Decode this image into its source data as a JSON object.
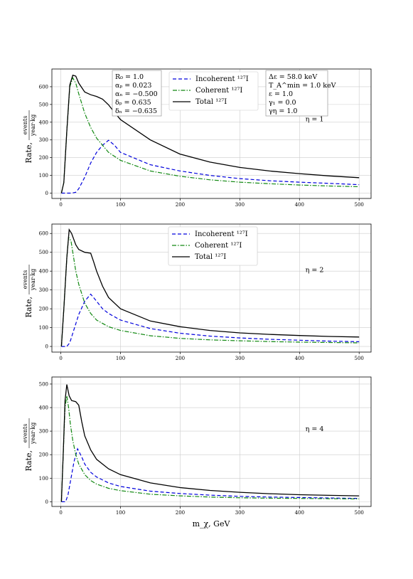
{
  "figure": {
    "xlabel": "m_χ, GeV",
    "ylabel_prefix": "Rate,",
    "ylabel_numerator": "events",
    "ylabel_denominator": "year·kg"
  },
  "legend": {
    "incoherent": "Incoherent ¹²⁷I",
    "coherent": "Coherent ¹²⁷I",
    "total": "Total ¹²⁷I"
  },
  "params_left": [
    "R₀ = 1.0",
    "αₚ = 0.023",
    "αₙ = −0.500",
    "δₚ = 0.635",
    "δₙ = −0.635"
  ],
  "params_right": [
    "Δε = 58.0 keV",
    "T_A^min = 1.0 keV",
    "ε = 1.0",
    "γ₁ = 0.0",
    "γη = 1.0"
  ],
  "colors": {
    "incoherent": "#0000dd",
    "coherent": "#118811",
    "total": "#000000",
    "grid": "#cccccc"
  },
  "chart_data": [
    {
      "type": "line",
      "label": "η = 1",
      "xlim": [
        -15,
        520
      ],
      "ylim": [
        -30,
        700
      ],
      "xticks": [
        0,
        100,
        200,
        300,
        400,
        500
      ],
      "yticks": [
        0,
        100,
        200,
        300,
        400,
        500,
        600
      ],
      "grid": true,
      "series": [
        {
          "name": "Incoherent ¹²⁷I",
          "key": "incoherent",
          "x": [
            1,
            18,
            25,
            30,
            40,
            50,
            60,
            70,
            80,
            90,
            100,
            150,
            200,
            250,
            300,
            350,
            400,
            450,
            500
          ],
          "y": [
            0,
            0,
            5,
            25,
            90,
            170,
            230,
            270,
            298,
            270,
            230,
            160,
            125,
            100,
            82,
            70,
            62,
            55,
            48
          ]
        },
        {
          "name": "Coherent ¹²⁷I",
          "key": "coherent",
          "x": [
            1,
            5,
            10,
            15,
            20,
            25,
            30,
            40,
            50,
            60,
            80,
            100,
            150,
            200,
            250,
            300,
            350,
            400,
            450,
            500
          ],
          "y": [
            0,
            60,
            350,
            600,
            650,
            620,
            560,
            450,
            370,
            310,
            230,
            185,
            125,
            95,
            75,
            62,
            53,
            46,
            40,
            36
          ]
        },
        {
          "name": "Total ¹²⁷I",
          "key": "total",
          "x": [
            1,
            5,
            10,
            15,
            20,
            25,
            30,
            40,
            50,
            60,
            70,
            80,
            90,
            100,
            150,
            200,
            250,
            300,
            350,
            400,
            450,
            500
          ],
          "y": [
            0,
            60,
            350,
            610,
            665,
            660,
            620,
            570,
            555,
            545,
            530,
            498,
            455,
            415,
            300,
            220,
            175,
            145,
            125,
            110,
            97,
            87
          ]
        }
      ]
    },
    {
      "type": "line",
      "label": "η = 2",
      "xlim": [
        -15,
        520
      ],
      "ylim": [
        -30,
        650
      ],
      "xticks": [
        0,
        100,
        200,
        300,
        400,
        500
      ],
      "yticks": [
        0,
        100,
        200,
        300,
        400,
        500,
        600
      ],
      "grid": true,
      "series": [
        {
          "name": "Incoherent ¹²⁷I",
          "key": "incoherent",
          "x": [
            1,
            10,
            15,
            20,
            25,
            30,
            40,
            50,
            60,
            70,
            80,
            100,
            150,
            200,
            250,
            300,
            350,
            400,
            450,
            500
          ],
          "y": [
            0,
            0,
            20,
            70,
            120,
            170,
            240,
            278,
            240,
            200,
            175,
            140,
            95,
            70,
            55,
            45,
            38,
            33,
            28,
            25
          ]
        },
        {
          "name": "Coherent ¹²⁷I",
          "key": "coherent",
          "x": [
            1,
            5,
            10,
            13,
            17,
            20,
            25,
            30,
            40,
            50,
            60,
            80,
            100,
            150,
            200,
            250,
            300,
            350,
            400,
            450,
            500
          ],
          "y": [
            0,
            200,
            470,
            580,
            560,
            500,
            400,
            330,
            230,
            175,
            140,
            105,
            85,
            57,
            43,
            35,
            30,
            26,
            23,
            21,
            19
          ]
        },
        {
          "name": "Total ¹²⁷I",
          "key": "total",
          "x": [
            1,
            5,
            10,
            14,
            18,
            25,
            30,
            40,
            50,
            55,
            60,
            70,
            80,
            100,
            150,
            200,
            250,
            300,
            350,
            400,
            450,
            500
          ],
          "y": [
            0,
            200,
            470,
            620,
            600,
            540,
            515,
            500,
            495,
            450,
            400,
            320,
            260,
            200,
            135,
            105,
            85,
            72,
            64,
            58,
            53,
            50
          ]
        }
      ]
    },
    {
      "type": "line",
      "label": "η = 4",
      "xlim": [
        -15,
        520
      ],
      "ylim": [
        -20,
        530
      ],
      "xticks": [
        0,
        100,
        200,
        300,
        400,
        500
      ],
      "yticks": [
        0,
        100,
        200,
        300,
        400,
        500
      ],
      "grid": true,
      "series": [
        {
          "name": "Incoherent ¹²⁷I",
          "key": "incoherent",
          "x": [
            1,
            8,
            12,
            17,
            22,
            28,
            35,
            40,
            50,
            60,
            80,
            100,
            150,
            200,
            250,
            300,
            350,
            400,
            450,
            500
          ],
          "y": [
            0,
            0,
            30,
            100,
            170,
            225,
            190,
            160,
            125,
            105,
            80,
            65,
            45,
            35,
            28,
            23,
            20,
            18,
            16,
            14
          ]
        },
        {
          "name": "Coherent ¹²⁷I",
          "key": "coherent",
          "x": [
            1,
            4,
            7,
            10,
            13,
            16,
            20,
            25,
            30,
            40,
            50,
            60,
            80,
            100,
            150,
            200,
            250,
            300,
            350,
            400,
            450,
            500
          ],
          "y": [
            0,
            200,
            400,
            450,
            400,
            330,
            260,
            200,
            160,
            115,
            90,
            75,
            57,
            47,
            32,
            25,
            20,
            17,
            15,
            14,
            13,
            12
          ]
        },
        {
          "name": "Total ¹²⁷I",
          "key": "total",
          "x": [
            1,
            4,
            7,
            10,
            14,
            18,
            25,
            30,
            35,
            40,
            50,
            60,
            80,
            100,
            150,
            200,
            250,
            300,
            350,
            400,
            450,
            500
          ],
          "y": [
            0,
            200,
            430,
            498,
            450,
            430,
            425,
            410,
            340,
            280,
            220,
            180,
            140,
            115,
            80,
            60,
            48,
            40,
            34,
            30,
            27,
            25
          ]
        }
      ]
    }
  ]
}
